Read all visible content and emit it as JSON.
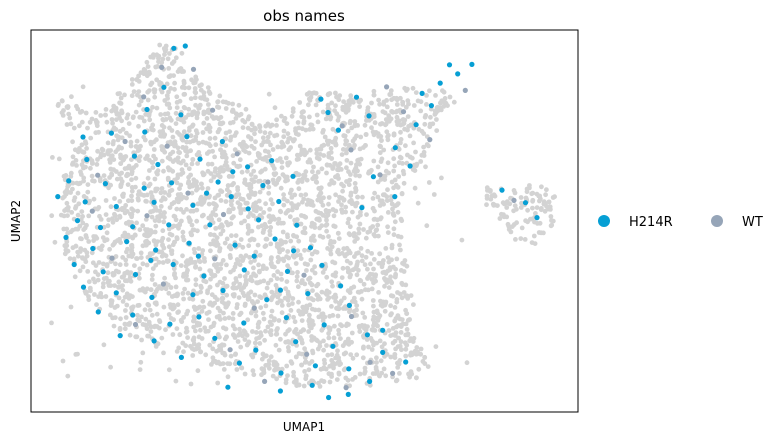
{
  "chart_data": {
    "type": "scatter",
    "title": "obs names",
    "xlabel": "UMAP1",
    "ylabel": "UMAP2",
    "xlim": [
      0,
      100
    ],
    "ylim": [
      0,
      100
    ],
    "grid": false,
    "ticks": false,
    "legend": {
      "placement": "right",
      "entries": [
        {
          "name": "H214R",
          "color": "#069fd4"
        },
        {
          "name": "WT",
          "color": "#96a5b8"
        }
      ]
    },
    "background_color": "#d3d3d3",
    "series": [
      {
        "name": "H214R",
        "color": "#069fd4",
        "points": [
          [
            26.1,
            95.2
          ],
          [
            28.2,
            95.8
          ],
          [
            24.3,
            85.0
          ],
          [
            21.2,
            79.2
          ],
          [
            27.4,
            77.8
          ],
          [
            14.7,
            73.0
          ],
          [
            20.8,
            73.3
          ],
          [
            28.5,
            72.1
          ],
          [
            35.0,
            70.8
          ],
          [
            9.5,
            72.0
          ],
          [
            10.2,
            66.1
          ],
          [
            18.9,
            67.0
          ],
          [
            23.2,
            64.8
          ],
          [
            30.9,
            66.2
          ],
          [
            39.6,
            64.2
          ],
          [
            6.9,
            60.5
          ],
          [
            13.6,
            59.8
          ],
          [
            20.7,
            58.6
          ],
          [
            25.7,
            60.0
          ],
          [
            34.2,
            60.2
          ],
          [
            36.6,
            56.4
          ],
          [
            4.9,
            56.4
          ],
          [
            9.9,
            55.0
          ],
          [
            15.6,
            53.8
          ],
          [
            22.5,
            54.9
          ],
          [
            29.6,
            54.1
          ],
          [
            39.7,
            53.2
          ],
          [
            45.3,
            55.1
          ],
          [
            8.5,
            50.1
          ],
          [
            12.7,
            48.3
          ],
          [
            18.6,
            48.5
          ],
          [
            25.2,
            49.0
          ],
          [
            32.7,
            49.0
          ],
          [
            41.6,
            50.3
          ],
          [
            48.6,
            48.9
          ],
          [
            6.4,
            45.7
          ],
          [
            11.3,
            42.8
          ],
          [
            17.5,
            44.6
          ],
          [
            22.8,
            42.4
          ],
          [
            28.9,
            44.2
          ],
          [
            37.3,
            43.7
          ],
          [
            44.6,
            45.3
          ],
          [
            51.1,
            43.0
          ],
          [
            7.9,
            38.6
          ],
          [
            13.2,
            36.7
          ],
          [
            19.1,
            36.0
          ],
          [
            26.0,
            38.6
          ],
          [
            31.6,
            35.6
          ],
          [
            39.0,
            37.2
          ],
          [
            46.9,
            36.8
          ],
          [
            53.2,
            38.4
          ],
          [
            9.6,
            32.7
          ],
          [
            15.6,
            31.2
          ],
          [
            22.1,
            30.0
          ],
          [
            29.6,
            30.7
          ],
          [
            35.1,
            31.8
          ],
          [
            43.1,
            29.4
          ],
          [
            50.6,
            31.0
          ],
          [
            56.6,
            33.0
          ],
          [
            12.3,
            26.2
          ],
          [
            18.6,
            25.4
          ],
          [
            25.4,
            23.0
          ],
          [
            30.7,
            24.9
          ],
          [
            38.9,
            23.3
          ],
          [
            46.7,
            24.7
          ],
          [
            53.6,
            22.8
          ],
          [
            58.2,
            27.9
          ],
          [
            16.3,
            20.0
          ],
          [
            22.5,
            18.6
          ],
          [
            33.6,
            19.3
          ],
          [
            41.1,
            16.2
          ],
          [
            48.4,
            18.4
          ],
          [
            55.2,
            17.2
          ],
          [
            61.5,
            20.2
          ],
          [
            27.5,
            14.3
          ],
          [
            38.1,
            12.8
          ],
          [
            45.7,
            10.2
          ],
          [
            52.0,
            12.1
          ],
          [
            58.1,
            11.3
          ],
          [
            64.3,
            15.6
          ],
          [
            36.0,
            6.5
          ],
          [
            45.6,
            5.5
          ],
          [
            51.4,
            7.0
          ],
          [
            54.4,
            3.8
          ],
          [
            58.0,
            4.6
          ],
          [
            61.9,
            8.0
          ],
          [
            68.5,
            13.1
          ],
          [
            64.3,
            21.4
          ],
          [
            53.0,
            81.9
          ],
          [
            54.3,
            78.4
          ],
          [
            59.5,
            82.4
          ],
          [
            61.8,
            77.5
          ],
          [
            56.2,
            73.8
          ],
          [
            66.6,
            69.2
          ],
          [
            70.4,
            75.2
          ],
          [
            73.2,
            80.2
          ],
          [
            71.5,
            83.4
          ],
          [
            74.8,
            86.1
          ],
          [
            76.5,
            90.9
          ],
          [
            80.6,
            91.0
          ],
          [
            78.0,
            88.5
          ],
          [
            69.3,
            64.4
          ],
          [
            62.6,
            61.6
          ],
          [
            66.5,
            56.4
          ],
          [
            60.5,
            53.5
          ],
          [
            86.1,
            58.1
          ],
          [
            90.4,
            54.8
          ],
          [
            92.5,
            50.9
          ],
          [
            32.1,
            57.3
          ],
          [
            36.9,
            62.9
          ],
          [
            42.4,
            59.3
          ],
          [
            44.0,
            65.8
          ],
          [
            47.9,
            61.7
          ],
          [
            40.8,
            40.8
          ],
          [
            48.0,
            42.2
          ],
          [
            45.6,
            31.9
          ],
          [
            30.6,
            40.8
          ],
          [
            21.9,
            39.7
          ]
        ]
      },
      {
        "name": "WT",
        "color": "#96a5b8",
        "points": [
          [
            23.9,
            90.2
          ],
          [
            29.7,
            89.7
          ],
          [
            20.6,
            82.5
          ],
          [
            33.2,
            79.0
          ],
          [
            17.2,
            70.8
          ],
          [
            24.9,
            69.6
          ],
          [
            37.7,
            67.6
          ],
          [
            12.2,
            62.0
          ],
          [
            28.7,
            57.3
          ],
          [
            43.3,
            60.2
          ],
          [
            11.2,
            52.6
          ],
          [
            21.2,
            51.4
          ],
          [
            35.2,
            51.7
          ],
          [
            14.8,
            40.3
          ],
          [
            33.6,
            40.1
          ],
          [
            49.9,
            35.8
          ],
          [
            24.2,
            33.5
          ],
          [
            40.8,
            27.2
          ],
          [
            58.6,
            25.0
          ],
          [
            19.1,
            22.9
          ],
          [
            36.4,
            16.3
          ],
          [
            50.4,
            15.1
          ],
          [
            62.0,
            13.0
          ],
          [
            42.7,
            8.0
          ],
          [
            57.6,
            6.4
          ],
          [
            66.1,
            10.1
          ],
          [
            56.9,
            74.9
          ],
          [
            65.0,
            85.1
          ],
          [
            68.1,
            78.6
          ],
          [
            72.9,
            71.3
          ],
          [
            79.4,
            84.2
          ],
          [
            63.8,
            62.1
          ],
          [
            58.5,
            68.6
          ],
          [
            88.3,
            55.4
          ]
        ]
      }
    ]
  }
}
